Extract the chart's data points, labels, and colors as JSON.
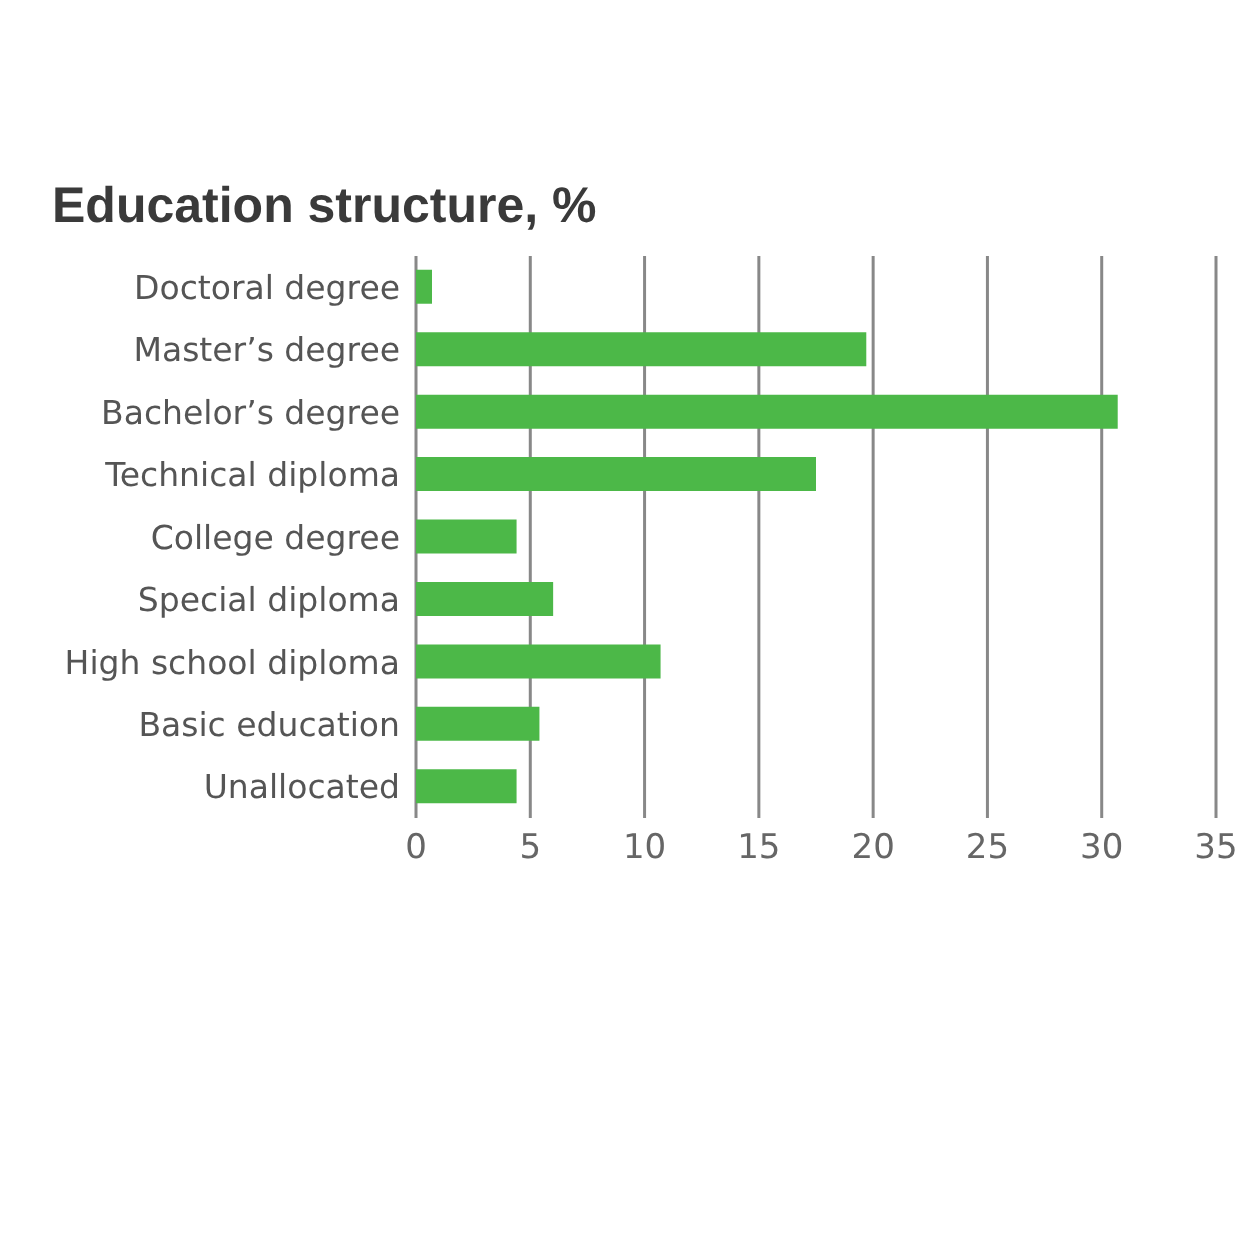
{
  "chart_data": {
    "type": "bar",
    "orientation": "horizontal",
    "title": "Education structure, %",
    "categories": [
      "Doctoral degree",
      "Master’s degree",
      "Bachelor’s degree",
      "Technical diploma",
      "College degree",
      "Special diploma",
      "High school diploma",
      "Basic education",
      "Unallocated"
    ],
    "values": [
      0.7,
      19.7,
      30.7,
      17.5,
      4.4,
      6.0,
      10.7,
      5.4,
      4.4
    ],
    "color": "#4cb848",
    "xlim": [
      0,
      35
    ],
    "xticks": [
      0,
      5,
      10,
      15,
      20,
      25,
      30,
      35
    ],
    "grid": "x"
  }
}
